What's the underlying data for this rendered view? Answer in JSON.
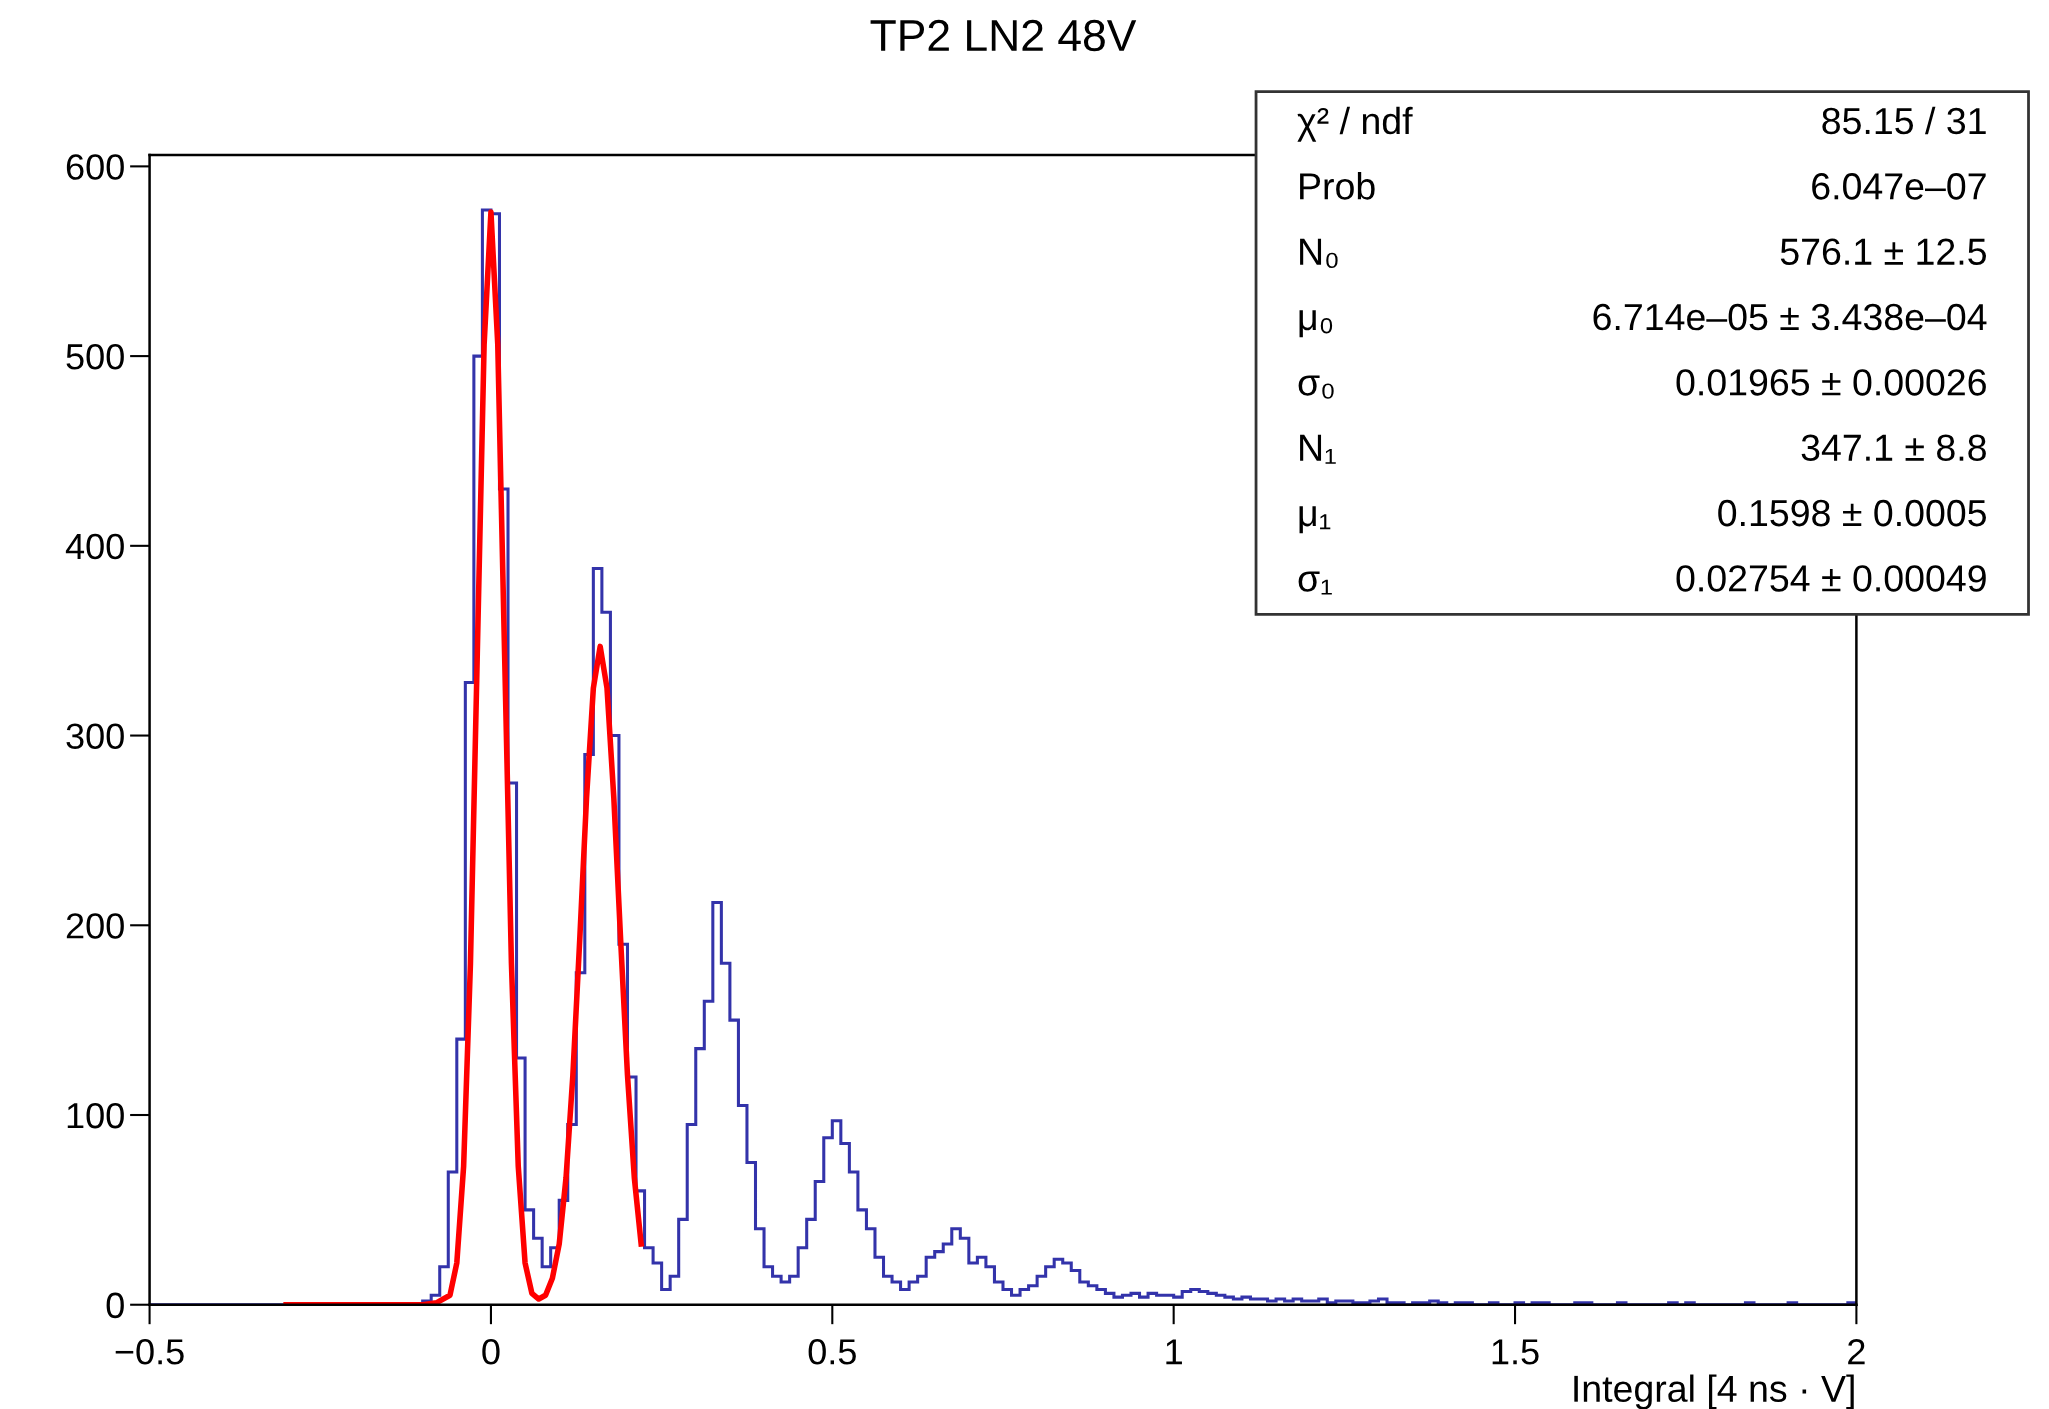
{
  "chart_data": {
    "type": "histogram",
    "title": "TP2 LN2 48V",
    "xlabel": "Integral [4 ns · V]",
    "bins": [
      -0.5,
      -0.4875,
      -0.475,
      -0.4625,
      -0.45,
      -0.4375,
      -0.425,
      -0.4125,
      -0.4,
      -0.3875,
      -0.375,
      -0.3625,
      -0.35,
      -0.3375,
      -0.325,
      -0.3125,
      -0.3,
      -0.2875,
      -0.275,
      -0.2625,
      -0.25,
      -0.2375,
      -0.225,
      -0.2125,
      -0.2,
      -0.1875,
      -0.175,
      -0.1625,
      -0.15,
      -0.1375,
      -0.125,
      -0.1125,
      -0.1,
      -0.0875,
      -0.075,
      -0.0625,
      -0.05,
      -0.0375,
      -0.025,
      -0.0125,
      0,
      0.0125,
      0.025,
      0.0375,
      0.05,
      0.0625,
      0.075,
      0.0875,
      0.1,
      0.1125,
      0.125,
      0.1375,
      0.15,
      0.1625,
      0.175,
      0.1875,
      0.2,
      0.2125,
      0.225,
      0.2375,
      0.25,
      0.2625,
      0.275,
      0.2875,
      0.3,
      0.3125,
      0.325,
      0.3375,
      0.35,
      0.3625,
      0.375,
      0.3875,
      0.4,
      0.4125,
      0.425,
      0.4375,
      0.45,
      0.4625,
      0.475,
      0.4875,
      0.5,
      0.5125,
      0.525,
      0.5375,
      0.55,
      0.5625,
      0.575,
      0.5875,
      0.6,
      0.6125,
      0.625,
      0.6375,
      0.65,
      0.6625,
      0.675,
      0.6875,
      0.7,
      0.7125,
      0.725,
      0.7375,
      0.75,
      0.7625,
      0.775,
      0.7875,
      0.8,
      0.8125,
      0.825,
      0.8375,
      0.85,
      0.8625,
      0.875,
      0.8875,
      0.9,
      0.9125,
      0.925,
      0.9375,
      0.95,
      0.9625,
      0.975,
      0.9875,
      1.0,
      1.0125,
      1.025,
      1.0375,
      1.05,
      1.0625,
      1.075,
      1.0875,
      1.1,
      1.1125,
      1.125,
      1.1375,
      1.15,
      1.1625,
      1.175,
      1.1875,
      1.2,
      1.2125,
      1.225,
      1.2375,
      1.25,
      1.2625,
      1.275,
      1.2875,
      1.3,
      1.3125,
      1.325,
      1.3375,
      1.35,
      1.3625,
      1.375,
      1.3875,
      1.4,
      1.4125,
      1.425,
      1.4375,
      1.45,
      1.4625,
      1.475,
      1.4875,
      1.5,
      1.5125,
      1.525,
      1.5375,
      1.55,
      1.5625,
      1.575,
      1.5875,
      1.6,
      1.6125,
      1.625,
      1.6375,
      1.65,
      1.6625,
      1.675,
      1.6875,
      1.7,
      1.7125,
      1.725,
      1.7375,
      1.75,
      1.7625,
      1.775,
      1.7875,
      1.8,
      1.8125,
      1.825,
      1.8375,
      1.85,
      1.8625,
      1.875,
      1.8875,
      1.9,
      1.9125,
      1.925,
      1.9375,
      1.95,
      1.9625,
      1.975,
      1.9875,
      2.0
    ],
    "series": [
      {
        "color": "#3333aa",
        "values": [
          0,
          0,
          0,
          0,
          0,
          0,
          0,
          0,
          0,
          0,
          0,
          0,
          0,
          0,
          0,
          0,
          0,
          0,
          0,
          0,
          0,
          0,
          0,
          0,
          0,
          0,
          0,
          0,
          0,
          0,
          0,
          0,
          2,
          5,
          20,
          70,
          140,
          328,
          500,
          577,
          575,
          430,
          275,
          130,
          50,
          35,
          20,
          30,
          55,
          95,
          175,
          290,
          388,
          365,
          300,
          190,
          120,
          60,
          30,
          22,
          8,
          15,
          45,
          95,
          135,
          160,
          212,
          180,
          150,
          105,
          75,
          40,
          20,
          15,
          12,
          15,
          30,
          45,
          65,
          88,
          97,
          85,
          70,
          50,
          40,
          25,
          15,
          12,
          8,
          12,
          15,
          25,
          28,
          32,
          40,
          35,
          22,
          25,
          20,
          12,
          8,
          5,
          8,
          10,
          15,
          20,
          24,
          22,
          18,
          12,
          10,
          8,
          6,
          4,
          5,
          6,
          4,
          6,
          5,
          5,
          4,
          7,
          8,
          7,
          6,
          5,
          4,
          3,
          4,
          3,
          3,
          2,
          3,
          2,
          3,
          2,
          2,
          3,
          1,
          2,
          2,
          1,
          1,
          2,
          3,
          1,
          1,
          0,
          1,
          1,
          2,
          1,
          0,
          1,
          1,
          0,
          0,
          1,
          0,
          0,
          1,
          0,
          1,
          1,
          0,
          0,
          0,
          1,
          1,
          0,
          0,
          0,
          1,
          0,
          0,
          0,
          0,
          0,
          1,
          0,
          1,
          0,
          0,
          0,
          0,
          0,
          0,
          1,
          0,
          0,
          0,
          0,
          1,
          0,
          0,
          0,
          0,
          0,
          0,
          1
        ]
      },
      {
        "type": "line",
        "color": "#ff0000",
        "x": [
          -0.3,
          -0.1,
          -0.08,
          -0.06,
          -0.05,
          -0.04,
          -0.03,
          -0.02,
          -0.01,
          0,
          0.01,
          0.02,
          0.03,
          0.04,
          0.05,
          0.06,
          0.07,
          0.08,
          0.09,
          0.1,
          0.11,
          0.12,
          0.13,
          0.14,
          0.15,
          0.16,
          0.17,
          0.18,
          0.19,
          0.2,
          0.21,
          0.22
        ],
        "values": [
          0,
          0,
          1,
          5,
          22,
          73,
          180,
          343,
          506,
          576,
          506,
          343,
          180,
          73,
          22,
          6,
          3,
          5,
          14,
          32,
          67,
          121,
          192,
          267,
          325,
          347,
          325,
          267,
          192,
          121,
          67,
          32
        ]
      }
    ],
    "xlim": [
      -0.5,
      2
    ],
    "ylim": [
      0,
      606
    ],
    "xticks": [
      {
        "value": -0.5,
        "label": "−0.5"
      },
      0,
      0.5,
      1,
      1.5,
      2
    ],
    "yticks": [
      0,
      100,
      200,
      300,
      400,
      500,
      600
    ],
    "grid": false,
    "legend": false,
    "annotations": [
      "χ² / ndf",
      "85.15 / 31",
      "Prob",
      "6.047e–07",
      "N₀",
      "576.1 ± 12.5",
      "μ₀",
      "6.714e–05 ± 3.438e–04",
      "σ₀",
      "0.01965 ± 0.00026",
      "N₁",
      "347.1 ± 8.8",
      "μ₁",
      "0.1598 ± 0.0005",
      "σ₁",
      "0.02754 ± 0.00049"
    ]
  }
}
